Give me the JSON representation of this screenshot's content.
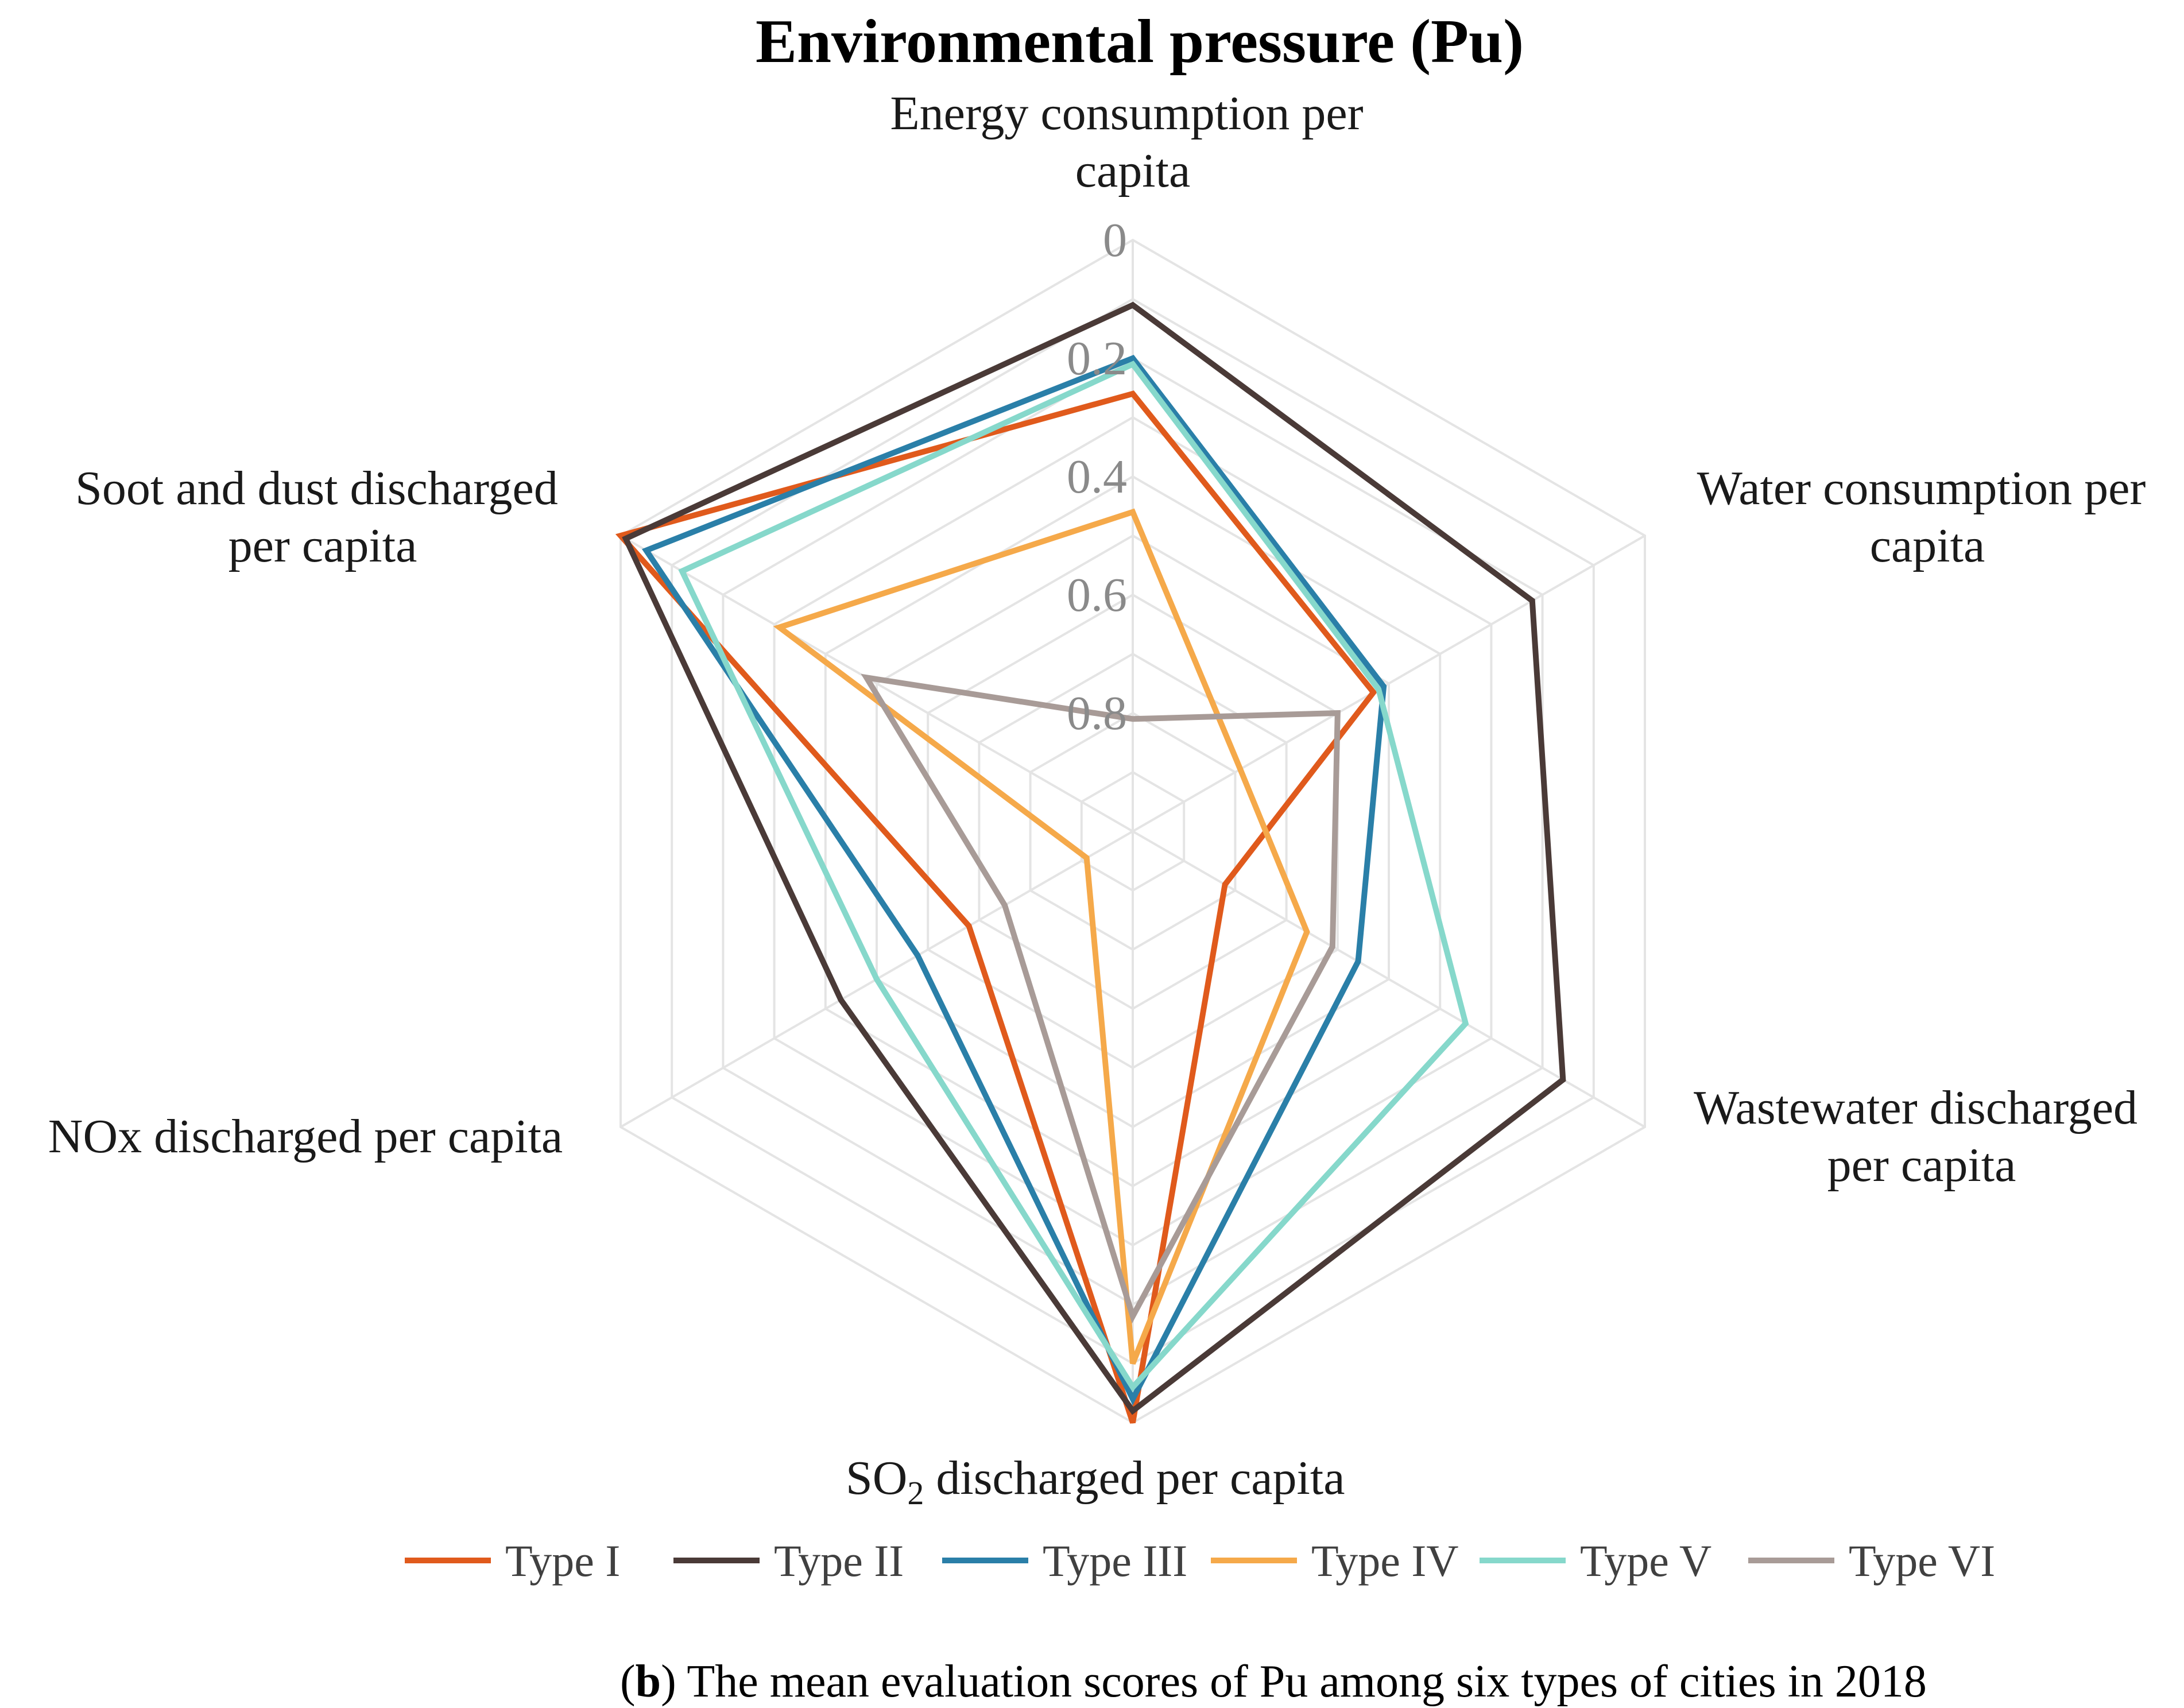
{
  "chart_data": {
    "type": "radar",
    "title": "Environmental pressure (Pu)",
    "axes": [
      "Energy consumption per capita",
      "Water consumption per capita",
      "Wastewater discharged per capita",
      "SO₂ discharged per capita",
      "NOx discharged per capita",
      "Soot and dust discharged per capita"
    ],
    "axis_label_lines": [
      [
        "Energy consumption per",
        "capita"
      ],
      [
        "Water consumption per",
        "capita"
      ],
      [
        "Wastewater discharged",
        "per capita"
      ],
      [
        "SO₂ discharged per capita"
      ],
      [
        "NOx discharged per capita"
      ],
      [
        "Soot and dust discharged",
        "per capita"
      ]
    ],
    "scale": {
      "inner_value": 1.0,
      "outer_value": 0,
      "reversed": true,
      "ring_step": 0.1
    },
    "tick_labels": [
      "0",
      "0.2",
      "0.4",
      "0.6",
      "0.8"
    ],
    "tick_values": [
      0,
      0.2,
      0.4,
      0.6,
      0.8
    ],
    "series": [
      {
        "name": "Type I",
        "color": "#E05A1C",
        "values": [
          0.26,
          0.53,
          0.82,
          0.0,
          0.68,
          0.0
        ]
      },
      {
        "name": "Type II",
        "color": "#4A3A37",
        "values": [
          0.11,
          0.22,
          0.16,
          0.02,
          0.43,
          0.01
        ]
      },
      {
        "name": "Type III",
        "color": "#2A7FA8",
        "values": [
          0.2,
          0.51,
          0.56,
          0.04,
          0.58,
          0.05
        ]
      },
      {
        "name": "Type IV",
        "color": "#F5A94A",
        "values": [
          0.46,
          0.79,
          0.66,
          0.1,
          0.91,
          0.31
        ]
      },
      {
        "name": "Type V",
        "color": "#86D8CB",
        "values": [
          0.21,
          0.52,
          0.35,
          0.06,
          0.5,
          0.12
        ]
      },
      {
        "name": "Type VI",
        "color": "#A89B97",
        "values": [
          0.81,
          0.6,
          0.61,
          0.18,
          0.75,
          0.48
        ]
      }
    ],
    "legend_position": "bottom"
  },
  "caption": {
    "prefix": "(",
    "bold": "b",
    "suffix": ") The mean evaluation scores of Pu among six types of cities in 2018"
  }
}
